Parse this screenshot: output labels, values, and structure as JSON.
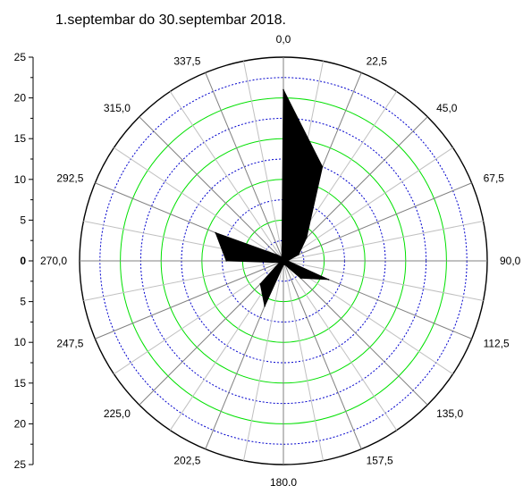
{
  "title": "1.septembar do 30.septembar 2018.",
  "chart_data": {
    "type": "polar-area",
    "title": "1.septembar do 30.septembar 2018.",
    "direction_labels": [
      "0,0",
      "22,5",
      "45,0",
      "67,5",
      "90,0",
      "112,5",
      "135,0",
      "157,5",
      "180.0",
      "202,5",
      "225,0",
      "247,5",
      "270,0",
      "292,5",
      "315,0",
      "337,5"
    ],
    "directions": [
      0,
      22.5,
      45,
      67.5,
      90,
      112.5,
      135,
      157.5,
      180,
      202.5,
      225,
      247.5,
      270,
      292.5,
      315,
      337.5
    ],
    "values": [
      21,
      12.5,
      4,
      2,
      0.5,
      6,
      3,
      0.5,
      0.5,
      6,
      4,
      0.5,
      7,
      9,
      1,
      0.5
    ],
    "radial_axis": {
      "range": [
        0,
        25
      ],
      "ticks_top": [
        "25",
        "20",
        "15",
        "10",
        "5",
        "0"
      ],
      "ticks_bottom": [
        "5",
        "10",
        "15",
        "20",
        "25"
      ],
      "minor_step": 2.5
    },
    "rings": {
      "solid_green": [
        5,
        10,
        15,
        20,
        25
      ],
      "dotted_blue": [
        2.5,
        7.5,
        12.5,
        17.5,
        22.5
      ]
    },
    "colors": {
      "fill": "#000000",
      "ring_green": "#00e000",
      "ring_blue": "#0000cc",
      "spoke_major": "#808080",
      "spoke_minor": "#c0c0c0",
      "outer": "#000000"
    }
  }
}
